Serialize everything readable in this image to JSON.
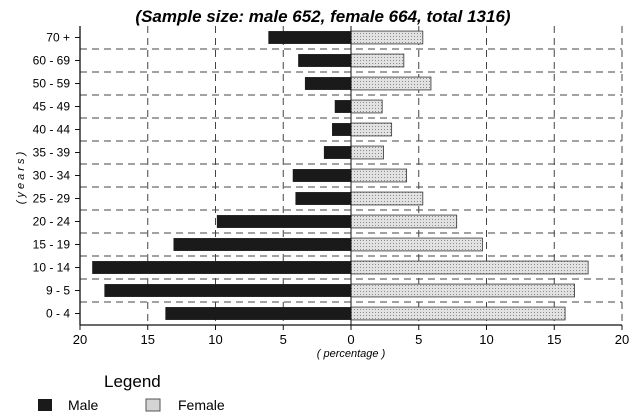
{
  "chart_data": {
    "type": "bar",
    "orientation": "horizontal",
    "title": "(Sample size:  male 652, female 664, total 1316)",
    "xlabel": "( percentage )",
    "ylabel": "( y e a r s )",
    "categories": [
      "70 +",
      "60 - 69",
      "50 - 59",
      "45 - 49",
      "40 - 44",
      "35 - 39",
      "30 - 34",
      "25 - 29",
      "20 - 24",
      "15 - 19",
      "10 - 14",
      "9 - 5",
      "0 - 4"
    ],
    "series": [
      {
        "name": "Male",
        "side": "left",
        "color": "#1a1a1a",
        "values": [
          6.1,
          3.9,
          3.4,
          1.2,
          1.4,
          2.0,
          4.3,
          4.1,
          9.9,
          13.1,
          19.1,
          18.2,
          13.7
        ]
      },
      {
        "name": "Female",
        "side": "right",
        "color": "#d4d4d4",
        "values": [
          5.3,
          3.9,
          5.9,
          2.3,
          3.0,
          2.4,
          4.1,
          5.3,
          7.8,
          9.7,
          17.5,
          16.5,
          15.8
        ]
      }
    ],
    "xlim": [
      -20,
      20
    ],
    "xticks": [
      -20,
      -15,
      -10,
      -5,
      0,
      5,
      10,
      15,
      20
    ],
    "xtick_labels": [
      "20",
      "15",
      "10",
      "5",
      "0",
      "5",
      "10",
      "15",
      "20"
    ],
    "grid": "dashed",
    "legend": {
      "title": "Legend",
      "position": "bottom-left"
    }
  }
}
